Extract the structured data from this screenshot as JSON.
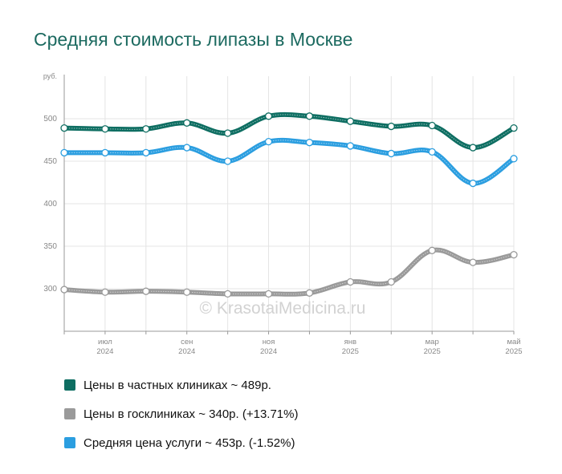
{
  "title": "Средняя стоимость липазы в Москве",
  "watermark": "© KrasotaiMedicina.ru",
  "chart_data": {
    "type": "line",
    "ylabel": "руб.",
    "ylim": [
      250,
      550
    ],
    "yticks": [
      300,
      350,
      400,
      450,
      500
    ],
    "ticks": [
      {
        "month": "июл",
        "year": "2024",
        "pos": 1
      },
      {
        "month": "сен",
        "year": "2024",
        "pos": 3
      },
      {
        "month": "ноя",
        "year": "2024",
        "pos": 5
      },
      {
        "month": "янв",
        "year": "2025",
        "pos": 7
      },
      {
        "month": "мар",
        "year": "2025",
        "pos": 9
      },
      {
        "month": "май",
        "year": "2025",
        "pos": 11
      }
    ],
    "point_count": 12,
    "series": [
      {
        "name": "Цены в частных клиниках",
        "color": "#0e6e62",
        "values": [
          489,
          488,
          488,
          495,
          483,
          503,
          503,
          497,
          491,
          492,
          466,
          489
        ]
      },
      {
        "name": "Средняя цена услуги",
        "color": "#2b9ee0",
        "values": [
          460,
          460,
          460,
          466,
          450,
          473,
          472,
          468,
          459,
          461,
          424,
          453
        ]
      },
      {
        "name": "Цены в госклиниках",
        "color": "#9a9a9a",
        "values": [
          299,
          296,
          297,
          296,
          294,
          294,
          295,
          308,
          308,
          345,
          331,
          340
        ]
      }
    ]
  },
  "legend": [
    {
      "label": "Цены в частных клиниках ~ 489р.",
      "color": "#0e6e62"
    },
    {
      "label": "Цены в госклиниках ~ 340р. (+13.71%)",
      "color": "#9a9a9a"
    },
    {
      "label": "Средняя цена услуги ~ 453р. (-1.52%)",
      "color": "#2b9ee0"
    }
  ]
}
